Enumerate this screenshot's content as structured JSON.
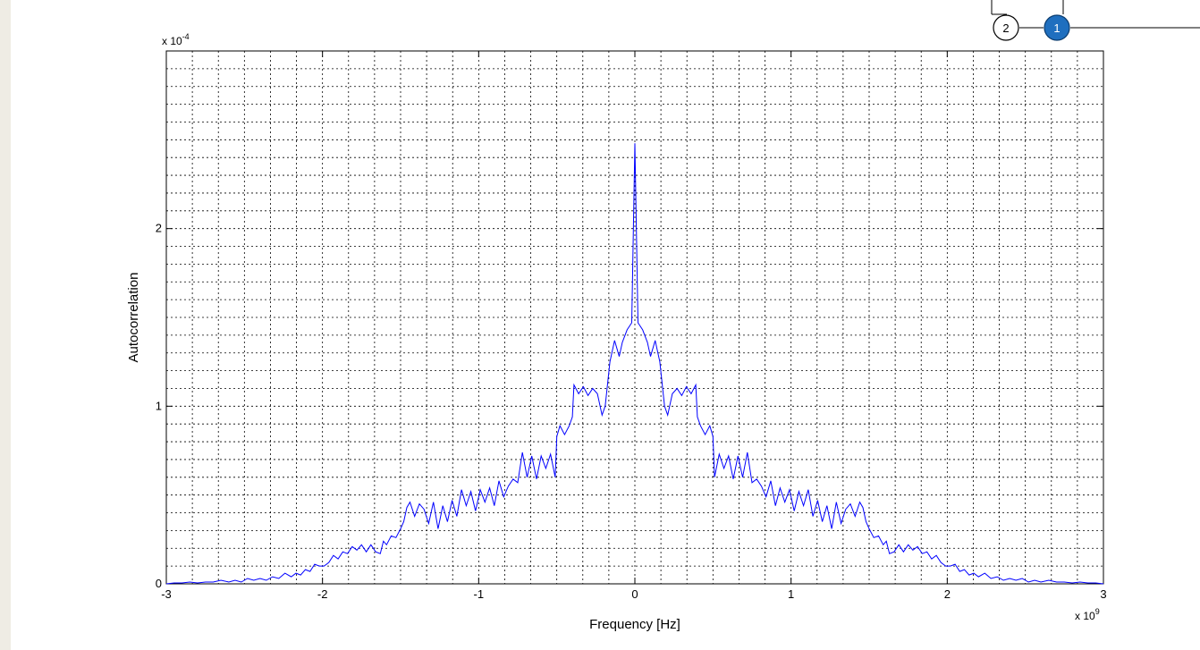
{
  "chart_data": {
    "type": "line",
    "xlabel": "Frequency [Hz]",
    "ylabel": "Autocorrelation",
    "x_exponent_base": "x 10",
    "x_exponent_power": "9",
    "y_exponent_base": "x 10",
    "y_exponent_power": "-4",
    "xlim": [
      -3,
      3
    ],
    "ylim": [
      0,
      3
    ],
    "x_ticks": [
      -3,
      -2,
      -1,
      0,
      1,
      2,
      3
    ],
    "x_tick_labels": [
      "-3",
      "-2",
      "-1",
      "0",
      "1",
      "2",
      "3"
    ],
    "y_ticks": [
      0,
      1,
      2
    ],
    "y_tick_labels": [
      "0",
      "1",
      "2"
    ],
    "grid": "dotted minor grid, on",
    "series": [
      {
        "color": "#0000ff",
        "points": [
          [
            0.0,
            2.48
          ],
          [
            0.02,
            1.47
          ],
          [
            0.05,
            1.43
          ],
          [
            0.08,
            1.36
          ],
          [
            0.1,
            1.28
          ],
          [
            0.13,
            1.37
          ],
          [
            0.16,
            1.25
          ],
          [
            0.19,
            1.0
          ],
          [
            0.21,
            0.95
          ],
          [
            0.24,
            1.07
          ],
          [
            0.27,
            1.1
          ],
          [
            0.3,
            1.06
          ],
          [
            0.33,
            1.11
          ],
          [
            0.36,
            1.07
          ],
          [
            0.39,
            1.12
          ],
          [
            0.4,
            0.94
          ],
          [
            0.42,
            0.89
          ],
          [
            0.45,
            0.84
          ],
          [
            0.48,
            0.89
          ],
          [
            0.5,
            0.83
          ],
          [
            0.51,
            0.6
          ],
          [
            0.54,
            0.73
          ],
          [
            0.57,
            0.65
          ],
          [
            0.6,
            0.72
          ],
          [
            0.63,
            0.59
          ],
          [
            0.66,
            0.72
          ],
          [
            0.69,
            0.6
          ],
          [
            0.72,
            0.74
          ],
          [
            0.75,
            0.57
          ],
          [
            0.78,
            0.59
          ],
          [
            0.81,
            0.55
          ],
          [
            0.84,
            0.49
          ],
          [
            0.87,
            0.58
          ],
          [
            0.9,
            0.44
          ],
          [
            0.93,
            0.54
          ],
          [
            0.96,
            0.46
          ],
          [
            0.99,
            0.53
          ],
          [
            1.02,
            0.41
          ],
          [
            1.05,
            0.52
          ],
          [
            1.08,
            0.44
          ],
          [
            1.11,
            0.53
          ],
          [
            1.14,
            0.38
          ],
          [
            1.17,
            0.47
          ],
          [
            1.2,
            0.35
          ],
          [
            1.23,
            0.44
          ],
          [
            1.26,
            0.31
          ],
          [
            1.29,
            0.46
          ],
          [
            1.32,
            0.34
          ],
          [
            1.35,
            0.42
          ],
          [
            1.38,
            0.45
          ],
          [
            1.41,
            0.38
          ],
          [
            1.44,
            0.46
          ],
          [
            1.46,
            0.43
          ],
          [
            1.48,
            0.35
          ],
          [
            1.5,
            0.31
          ],
          [
            1.53,
            0.26
          ],
          [
            1.56,
            0.27
          ],
          [
            1.59,
            0.22
          ],
          [
            1.61,
            0.24
          ],
          [
            1.63,
            0.17
          ],
          [
            1.66,
            0.18
          ],
          [
            1.69,
            0.22
          ],
          [
            1.72,
            0.18
          ],
          [
            1.75,
            0.22
          ],
          [
            1.78,
            0.19
          ],
          [
            1.81,
            0.21
          ],
          [
            1.84,
            0.17
          ],
          [
            1.87,
            0.18
          ],
          [
            1.9,
            0.14
          ],
          [
            1.93,
            0.16
          ],
          [
            1.96,
            0.12
          ],
          [
            1.99,
            0.1
          ],
          [
            2.02,
            0.1
          ],
          [
            2.05,
            0.11
          ],
          [
            2.08,
            0.07
          ],
          [
            2.11,
            0.08
          ],
          [
            2.14,
            0.05
          ],
          [
            2.17,
            0.06
          ],
          [
            2.2,
            0.04
          ],
          [
            2.24,
            0.06
          ],
          [
            2.28,
            0.03
          ],
          [
            2.32,
            0.04
          ],
          [
            2.36,
            0.02
          ],
          [
            2.4,
            0.03
          ],
          [
            2.44,
            0.02
          ],
          [
            2.48,
            0.03
          ],
          [
            2.52,
            0.01
          ],
          [
            2.56,
            0.02
          ],
          [
            2.6,
            0.01
          ],
          [
            2.65,
            0.02
          ],
          [
            2.7,
            0.01
          ],
          [
            2.75,
            0.01
          ],
          [
            2.8,
            0.005
          ],
          [
            2.85,
            0.01
          ],
          [
            2.9,
            0.005
          ],
          [
            2.95,
            0.005
          ],
          [
            3.0,
            0.0
          ]
        ]
      }
    ]
  },
  "markers": [
    {
      "label": "2",
      "filled": false,
      "fill": "#ffffff",
      "text_color": "#000000"
    },
    {
      "label": "1",
      "filled": true,
      "fill": "#1f6fbf",
      "text_color": "#ffffff"
    }
  ]
}
